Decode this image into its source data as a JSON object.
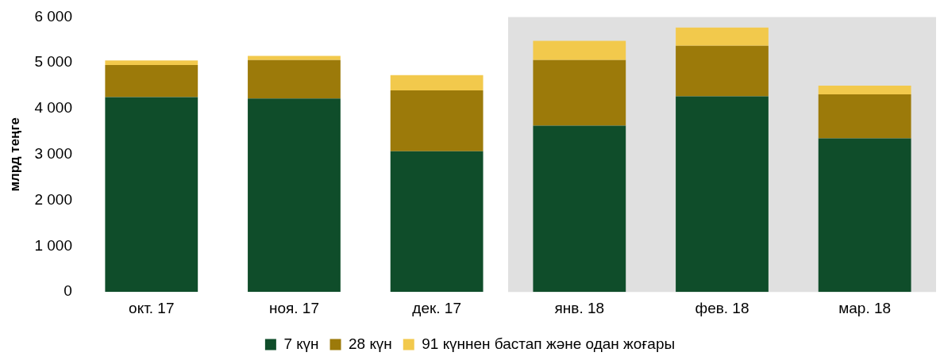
{
  "chart_data": {
    "type": "bar",
    "stacked": true,
    "ylabel": "млрд теңге",
    "categories": [
      "окт. 17",
      "ноя. 17",
      "дек. 17",
      "янв. 18",
      "фев. 18",
      "мар. 18"
    ],
    "series": [
      {
        "name": "7 күн",
        "color": "#0f4d2a",
        "values": [
          4250,
          4220,
          3070,
          3630,
          4270,
          3350
        ]
      },
      {
        "name": "28 күн",
        "color": "#9c7a0a",
        "values": [
          700,
          840,
          1330,
          1430,
          1100,
          960
        ]
      },
      {
        "name": "91 күннен бастап және одан жоғары",
        "color": "#f2c94c",
        "values": [
          100,
          90,
          330,
          420,
          400,
          190
        ]
      }
    ],
    "ylim": [
      0,
      6000
    ],
    "yticks": [
      {
        "value": 0,
        "label": "0"
      },
      {
        "value": 1000,
        "label": "1 000"
      },
      {
        "value": 2000,
        "label": "2 000"
      },
      {
        "value": 3000,
        "label": "3 000"
      },
      {
        "value": 4000,
        "label": "4 000"
      },
      {
        "value": 5000,
        "label": "5 000"
      },
      {
        "value": 6000,
        "label": "6 000"
      }
    ],
    "bands": [
      {
        "axis": "x",
        "from": "янв. 18",
        "to": "мар. 18",
        "color": "#e0e0e0"
      }
    ],
    "grid": false,
    "legend": "bottom"
  }
}
